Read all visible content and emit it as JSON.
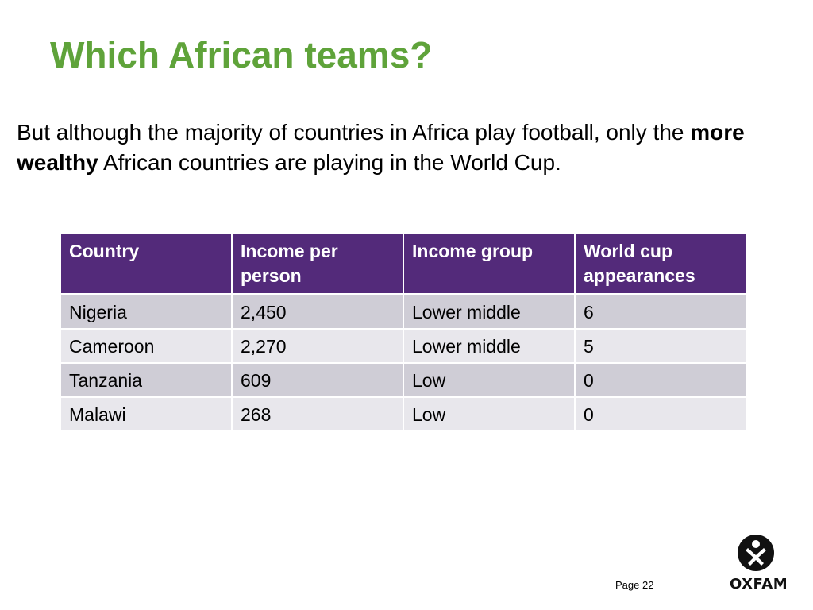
{
  "slide": {
    "title": "Which African teams?",
    "intro": {
      "text_before": "But although the majority of countries in Africa play football, only the ",
      "emphasis": "more wealthy",
      "text_after": " African countries are playing in the World Cup."
    },
    "page_label": "Page 22"
  },
  "table": {
    "headers": [
      "Country",
      "Income per person",
      "Income group",
      "World cup appearances"
    ],
    "rows": [
      [
        "Nigeria",
        "2,450",
        "Lower middle",
        "6"
      ],
      [
        "Cameroon",
        "2,270",
        "Lower middle",
        "5"
      ],
      [
        "Tanzania",
        "609",
        "Low",
        "0"
      ],
      [
        "Malawi",
        "268",
        "Low",
        "0"
      ]
    ]
  },
  "logo": {
    "text": "OXFAM",
    "icon": "oxfam-figure-icon"
  },
  "colors": {
    "title": "#5fa33a",
    "header_bg": "#532a7a",
    "row_odd": "#cfcdd6",
    "row_even": "#e8e7ec"
  }
}
